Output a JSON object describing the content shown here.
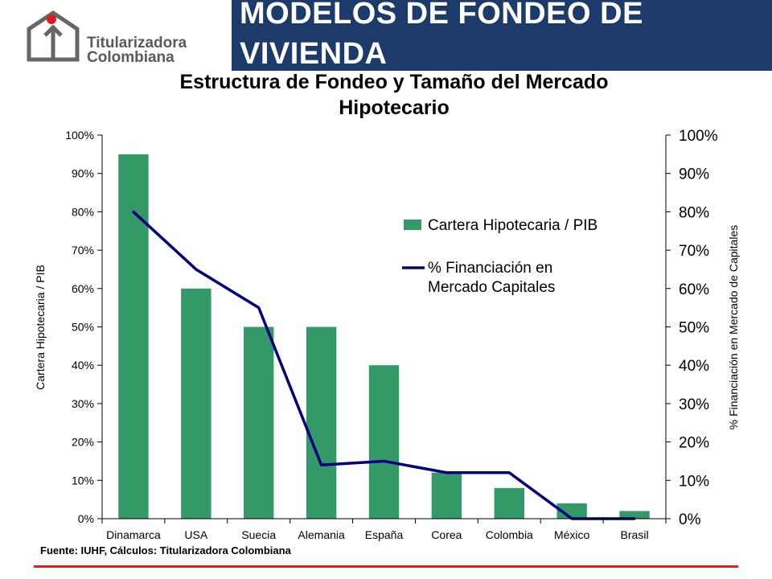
{
  "header": {
    "title": "MODELOS DE FONDEO DE VIVIENDA",
    "logo_line1": "Titularizadora",
    "logo_line2": "Colombiana"
  },
  "source_note": "Fuente: IUHF, Cálculos: Titularizadora Colombiana",
  "colors": {
    "header_bg": "#1c3a6a",
    "bar": "#339966",
    "line": "#000080",
    "accent_red": "#e02020"
  },
  "chart_data": {
    "type": "bar",
    "title_line1": "Estructura de Fondeo y Tamaño del Mercado",
    "title_line2": "Hipotecario",
    "categories": [
      "Dinamarca",
      "USA",
      "Suecia",
      "Alemania",
      "España",
      "Corea",
      "Colombia",
      "México",
      "Brasil"
    ],
    "series": [
      {
        "name": "Cartera Hipotecaria / PIB",
        "type": "bar",
        "axis": "left",
        "values": [
          95,
          60,
          50,
          50,
          40,
          12,
          8,
          4,
          2
        ]
      },
      {
        "name_line1": "% Financiación en",
        "name_line2": "Mercado Capitales",
        "type": "line",
        "axis": "right",
        "values": [
          80,
          65,
          55,
          14,
          15,
          12,
          12,
          0,
          0
        ]
      }
    ],
    "ylabel_left": "Cartera Hipotecaria / PIB",
    "ylabel_right": "% Financiación en Mercado de Capitales",
    "ylim": [
      0,
      100
    ],
    "yticks": [
      "0%",
      "10%",
      "20%",
      "30%",
      "40%",
      "50%",
      "60%",
      "70%",
      "80%",
      "90%",
      "100%"
    ],
    "grid": false,
    "legend_position": "right-center"
  }
}
